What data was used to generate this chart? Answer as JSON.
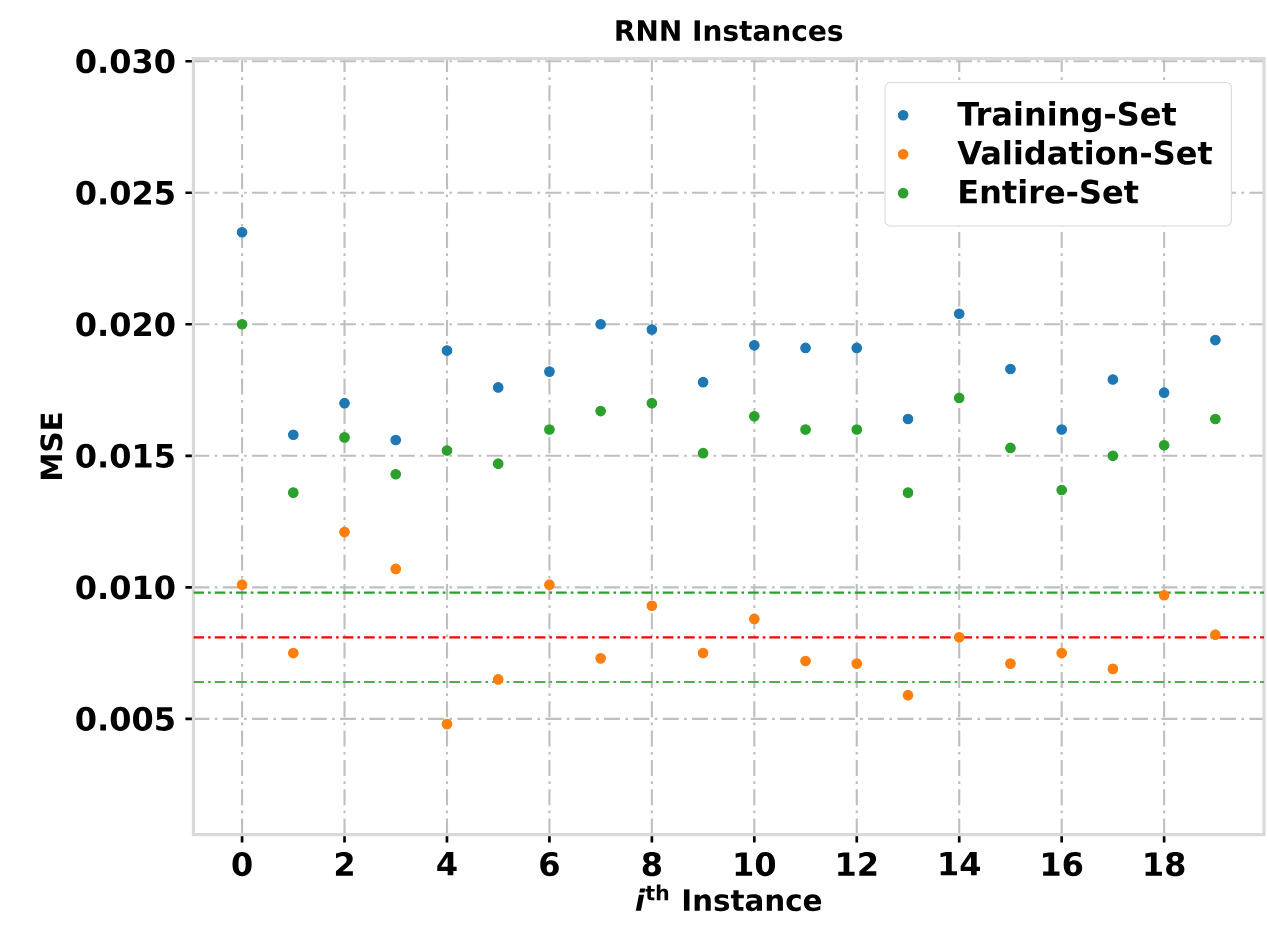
{
  "chart_data": {
    "type": "scatter",
    "title": "RNN Instances",
    "xlabel": "*i*$^{th}$ Instance",
    "ylabel": "MSE",
    "x": [
      0,
      1,
      2,
      3,
      4,
      5,
      6,
      7,
      8,
      9,
      10,
      11,
      12,
      13,
      14,
      15,
      16,
      17,
      18,
      19
    ],
    "series": [
      {
        "name": "Training-Set",
        "color": "#1f77b4",
        "values": [
          0.0235,
          0.0158,
          0.017,
          0.0156,
          0.019,
          0.0176,
          0.0182,
          0.02,
          0.0198,
          0.0178,
          0.0192,
          0.0191,
          0.0191,
          0.0164,
          0.0204,
          0.0183,
          0.016,
          0.0179,
          0.0174,
          0.0194
        ]
      },
      {
        "name": "Validation-Set",
        "color": "#ff7f0e",
        "values": [
          0.0101,
          0.0075,
          0.0121,
          0.0107,
          0.0048,
          0.0065,
          0.0101,
          0.0073,
          0.0093,
          0.0075,
          0.0088,
          0.0072,
          0.0071,
          0.0059,
          0.0081,
          0.0071,
          0.0075,
          0.0069,
          0.0097,
          0.0082
        ]
      },
      {
        "name": "Entire-Set",
        "color": "#2ca02c",
        "values": [
          0.02,
          0.0136,
          0.0157,
          0.0143,
          0.0152,
          0.0147,
          0.016,
          0.0167,
          0.017,
          0.0151,
          0.0165,
          0.016,
          0.016,
          0.0136,
          0.0172,
          0.0153,
          0.0137,
          0.015,
          0.0154,
          0.0164
        ]
      }
    ],
    "ref_lines": [
      {
        "axis": "y",
        "value": 0.0098,
        "color": "#2ca02c"
      },
      {
        "axis": "y",
        "value": 0.0081,
        "color": "#ff0000"
      },
      {
        "axis": "y",
        "value": 0.0064,
        "color": "#4daf4a"
      }
    ],
    "xlim": [
      -0.95,
      19.95
    ],
    "ylim": [
      0.0006,
      0.0301
    ],
    "xticks": [
      0,
      2,
      4,
      6,
      8,
      10,
      12,
      14,
      16,
      18
    ],
    "yticks": [
      {
        "value": 0.005,
        "label": "0.005"
      },
      {
        "value": 0.01,
        "label": "0.010"
      },
      {
        "value": 0.015,
        "label": "0.015"
      },
      {
        "value": 0.02,
        "label": "0.020"
      },
      {
        "value": 0.025,
        "label": "0.025"
      },
      {
        "value": 0.03,
        "label": "0.030"
      }
    ],
    "grid": true,
    "legend": "top right",
    "marker": "circle"
  }
}
